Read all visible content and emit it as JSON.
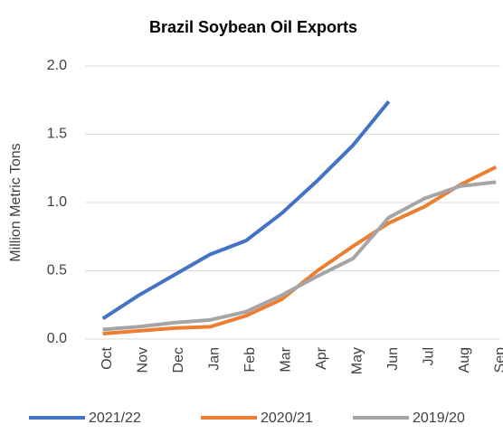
{
  "chart_data": {
    "type": "line",
    "title": "Brazil Soybean Oil Exports",
    "y_label": "Million Metric Tons",
    "categories": [
      "Oct",
      "Nov",
      "Dec",
      "Jan",
      "Feb",
      "Mar",
      "Apr",
      "May",
      "Jun",
      "Jul",
      "Aug",
      "Sep"
    ],
    "series": [
      {
        "name": "2021/22",
        "color": "#4472c4",
        "values": [
          0.15,
          0.32,
          0.47,
          0.62,
          0.72,
          0.92,
          1.16,
          1.42,
          1.74,
          null,
          null,
          null
        ]
      },
      {
        "name": "2020/21",
        "color": "#ed7d31",
        "values": [
          0.04,
          0.06,
          0.08,
          0.09,
          0.17,
          0.29,
          0.5,
          0.68,
          0.85,
          0.97,
          1.13,
          1.26
        ]
      },
      {
        "name": "2019/20",
        "color": "#a5a5a5",
        "values": [
          0.07,
          0.09,
          0.12,
          0.14,
          0.2,
          0.32,
          0.46,
          0.59,
          0.89,
          1.03,
          1.12,
          1.15
        ]
      }
    ],
    "ylim": [
      0,
      2
    ],
    "yticks": [
      {
        "value": 0,
        "label": "0.0"
      },
      {
        "value": 0.5,
        "label": "0.5"
      },
      {
        "value": 1,
        "label": "1.0"
      },
      {
        "value": 1.5,
        "label": "1.5"
      },
      {
        "value": 2,
        "label": "2.0"
      }
    ],
    "grid": true,
    "legend": "bottom"
  }
}
